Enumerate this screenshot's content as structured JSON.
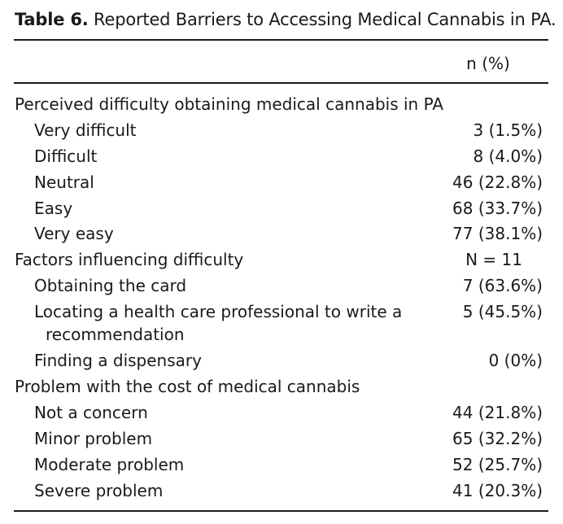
{
  "caption": {
    "label": "Table 6.",
    "title": "Reported Barriers to Accessing Medical Cannabis in PA."
  },
  "column_header": "n (%)",
  "rows": [
    {
      "kind": "section",
      "label": "Perceived difficulty obtaining medical cannabis in PA",
      "value": ""
    },
    {
      "kind": "item",
      "label": "Very difficult",
      "value": "3 (1.5%)"
    },
    {
      "kind": "item",
      "label": "Difficult",
      "value": "8 (4.0%)"
    },
    {
      "kind": "item",
      "label": "Neutral",
      "value": "46 (22.8%)"
    },
    {
      "kind": "item",
      "label": "Easy",
      "value": "68 (33.7%)"
    },
    {
      "kind": "item",
      "label": "Very easy",
      "value": "77 (38.1%)"
    },
    {
      "kind": "section",
      "label": "Factors influencing difficulty",
      "value": "N = 11"
    },
    {
      "kind": "item",
      "label": "Obtaining the card",
      "value": "7 (63.6%)"
    },
    {
      "kind": "item",
      "label": "Locating a health care professional to write a",
      "label_cont": "recommendation",
      "value": "5 (45.5%)"
    },
    {
      "kind": "item",
      "label": "Finding a dispensary",
      "value": "0 (0%)"
    },
    {
      "kind": "section",
      "label": "Problem with the cost of medical cannabis",
      "value": ""
    },
    {
      "kind": "item",
      "label": "Not a concern",
      "value": "44 (21.8%)"
    },
    {
      "kind": "item",
      "label": "Minor problem",
      "value": "65 (32.2%)"
    },
    {
      "kind": "item",
      "label": "Moderate problem",
      "value": "52 (25.7%)"
    },
    {
      "kind": "item",
      "label": "Severe problem",
      "value": "41 (20.3%)"
    }
  ]
}
